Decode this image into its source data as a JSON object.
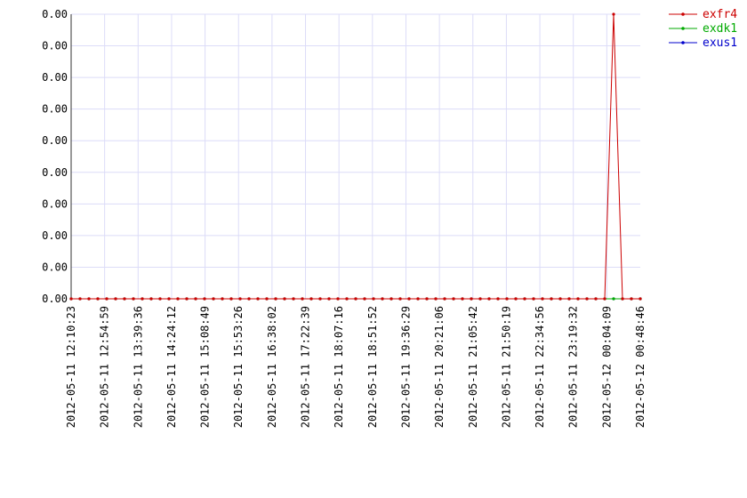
{
  "chart_data": {
    "type": "line",
    "title": "",
    "xlabel": "",
    "ylabel": "",
    "x_tick_labels": [
      "2012-05-11 12:10:23",
      "2012-05-11 12:54:59",
      "2012-05-11 13:39:36",
      "2012-05-11 14:24:12",
      "2012-05-11 15:08:49",
      "2012-05-11 15:53:26",
      "2012-05-11 16:38:02",
      "2012-05-11 17:22:39",
      "2012-05-11 18:07:16",
      "2012-05-11 18:51:52",
      "2012-05-11 19:36:29",
      "2012-05-11 20:21:06",
      "2012-05-11 21:05:42",
      "2012-05-11 21:50:19",
      "2012-05-11 22:34:56",
      "2012-05-11 23:19:32",
      "2012-05-12 00:04:09",
      "2012-05-12 00:48:46"
    ],
    "y_tick_labels": [
      "0.00",
      "0.00",
      "0.00",
      "0.00",
      "0.00",
      "0.00",
      "0.00",
      "0.00",
      "0.00",
      "0.00"
    ],
    "ylim": [
      0,
      0.009
    ],
    "grid": true,
    "legend_position": "top-right",
    "series": [
      {
        "name": "exfr4",
        "color": "#cc0000",
        "values": [
          0,
          0,
          0,
          0,
          0,
          0,
          0,
          0,
          0,
          0,
          0,
          0,
          0,
          0,
          0,
          0,
          0,
          0,
          0,
          0,
          0,
          0,
          0,
          0,
          0,
          0,
          0,
          0,
          0,
          0,
          0,
          0,
          0,
          0,
          0,
          0,
          0,
          0,
          0,
          0,
          0,
          0,
          0,
          0,
          0,
          0,
          0,
          0,
          0,
          0,
          0,
          0,
          0,
          0,
          0,
          0,
          0,
          0,
          0,
          0,
          0,
          0.009,
          0,
          0,
          0
        ]
      },
      {
        "name": "exdk1",
        "color": "#00aa00",
        "values": [
          0,
          0,
          0,
          0,
          0,
          0,
          0,
          0,
          0,
          0,
          0,
          0,
          0,
          0,
          0,
          0,
          0,
          0,
          0,
          0,
          0,
          0,
          0,
          0,
          0,
          0,
          0,
          0,
          0,
          0,
          0,
          0,
          0,
          0,
          0,
          0,
          0,
          0,
          0,
          0,
          0,
          0,
          0,
          0,
          0,
          0,
          0,
          0,
          0,
          0,
          0,
          0,
          0,
          0,
          0,
          0,
          0,
          0,
          0,
          0,
          0,
          0,
          0,
          0,
          0
        ]
      },
      {
        "name": "exus1",
        "color": "#0000cc",
        "values": [
          0,
          0,
          0,
          0,
          0,
          0,
          0,
          0,
          0,
          0,
          0,
          0,
          0,
          0,
          0,
          0,
          0,
          0,
          0,
          0,
          0,
          0,
          0,
          0,
          0,
          0,
          0,
          0,
          0,
          0,
          0,
          0,
          0,
          0,
          0,
          0,
          0,
          0,
          0,
          0,
          0,
          0,
          0,
          0,
          0,
          0,
          0,
          0,
          0,
          0,
          0,
          0,
          0,
          0,
          0,
          0,
          0,
          0,
          0,
          0,
          0,
          0,
          0,
          0,
          0
        ]
      }
    ]
  }
}
